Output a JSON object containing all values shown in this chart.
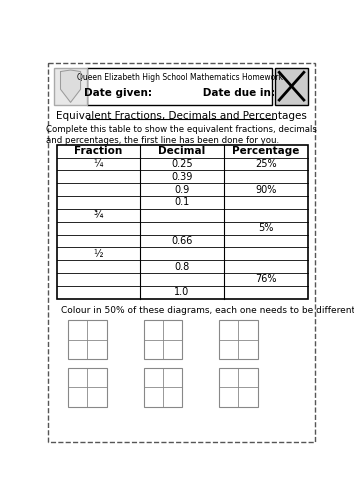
{
  "title": "Equivalent Fractions, Decimals and Percentages",
  "school_header": "Queen Elizabeth High School Mathematics Homework",
  "date_line": "Date given:              Date due in:",
  "instruction": "Complete this table to show the equivalent fractions, decimals\nand percentages, the first line has been done for you.",
  "colour_instruction": "Colour in 50% of these diagrams, each one needs to be different.",
  "col_headers": [
    "Fraction",
    "Decimal",
    "Percentage"
  ],
  "table_rows": [
    [
      "¼",
      "0.25",
      "25%"
    ],
    [
      "",
      "0.39",
      ""
    ],
    [
      "",
      "0.9",
      "90%"
    ],
    [
      "",
      "0.1",
      ""
    ],
    [
      "¾",
      "",
      ""
    ],
    [
      "",
      "",
      "5%"
    ],
    [
      "",
      "0.66",
      ""
    ],
    [
      "½",
      "",
      ""
    ],
    [
      "",
      "0.8",
      ""
    ],
    [
      "",
      "",
      "76%"
    ],
    [
      "",
      "1.0",
      ""
    ]
  ],
  "bg_color": "#ffffff",
  "dashed_border_color": "#555555"
}
